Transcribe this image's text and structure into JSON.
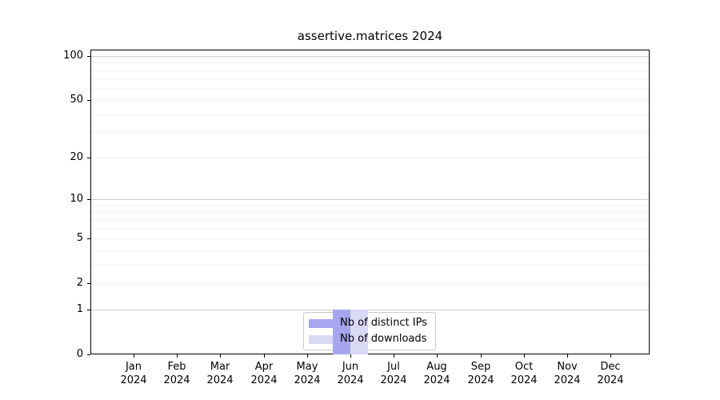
{
  "title": "assertive.matrices 2024",
  "chart_data": {
    "type": "bar",
    "title": "assertive.matrices 2024",
    "x_ticks": [
      {
        "month": "Jan",
        "year": "2024"
      },
      {
        "month": "Feb",
        "year": "2024"
      },
      {
        "month": "Mar",
        "year": "2024"
      },
      {
        "month": "Apr",
        "year": "2024"
      },
      {
        "month": "May",
        "year": "2024"
      },
      {
        "month": "Jun",
        "year": "2024"
      },
      {
        "month": "Jul",
        "year": "2024"
      },
      {
        "month": "Aug",
        "year": "2024"
      },
      {
        "month": "Sep",
        "year": "2024"
      },
      {
        "month": "Oct",
        "year": "2024"
      },
      {
        "month": "Nov",
        "year": "2024"
      },
      {
        "month": "Dec",
        "year": "2024"
      }
    ],
    "series": [
      {
        "name": "Nb of distinct IPs",
        "color": "#a6a6ef",
        "values": [
          0,
          0,
          0,
          0,
          0,
          1,
          0,
          0,
          0,
          0,
          0,
          0
        ]
      },
      {
        "name": "Nb of downloads",
        "color": "#d9d9f6",
        "values": [
          0,
          0,
          0,
          0,
          0,
          1,
          0,
          0,
          0,
          0,
          0,
          0
        ]
      }
    ],
    "y_scale": "log1p",
    "ylim": [
      0,
      110
    ],
    "y_tick_values": [
      0,
      1,
      2,
      5,
      10,
      20,
      50,
      100
    ],
    "y_major_gridlines": [
      1,
      10,
      100
    ],
    "y_minor_gridlines": [
      2,
      3,
      4,
      5,
      6,
      7,
      8,
      9,
      20,
      30,
      40,
      50,
      60,
      70,
      80,
      90
    ],
    "grid": "horizontal-only",
    "legend_position": "bottom-center-inside"
  },
  "legend": {
    "items": [
      {
        "label": "Nb of distinct IPs",
        "color": "#a6a6ef"
      },
      {
        "label": "Nb of downloads",
        "color": "#d9d9f6"
      }
    ]
  },
  "colors": {
    "background": "#ffffff",
    "axis": "#000000",
    "grid_major": "#cdcdcd",
    "grid_minor": "#f0f0f0",
    "distinct_ips": "#a6a6ef",
    "downloads": "#d9d9f6"
  }
}
